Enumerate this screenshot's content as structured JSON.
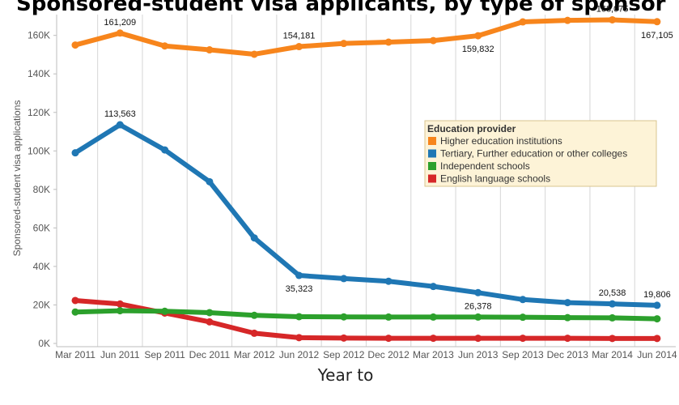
{
  "chart_data": {
    "type": "line",
    "title": "Sponsored-student visa applicants, by type of sponsor",
    "xlabel": "Year to",
    "ylabel": "Sponsored-student visa applications",
    "ylim": [
      0,
      170000
    ],
    "y_ticks": [
      0,
      20000,
      40000,
      60000,
      80000,
      100000,
      120000,
      140000,
      160000
    ],
    "y_tick_labels": [
      "0K",
      "20K",
      "40K",
      "60K",
      "80K",
      "100K",
      "120K",
      "140K",
      "160K"
    ],
    "grid": "vertical",
    "legend_position": "right",
    "legend_title": "Education provider",
    "categories": [
      "Mar 2011",
      "Jun 2011",
      "Sep 2011",
      "Dec 2011",
      "Mar 2012",
      "Jun 2012",
      "Sep 2012",
      "Dec 2012",
      "Mar 2013",
      "Jun 2013",
      "Sep 2013",
      "Dec 2013",
      "Mar 2014",
      "Jun 2014"
    ],
    "series": [
      {
        "name": "Higher education institutions",
        "color": "#f7851c",
        "values": [
          155000,
          161209,
          154500,
          152500,
          150200,
          154181,
          155800,
          156500,
          157300,
          159832,
          167000,
          167800,
          168075,
          167105
        ],
        "labels": [
          {
            "index": 1,
            "text": "161,209",
            "pos": "above"
          },
          {
            "index": 5,
            "text": "154,181",
            "pos": "above"
          },
          {
            "index": 9,
            "text": "159,832",
            "pos": "below"
          },
          {
            "index": 12,
            "text": "168,075",
            "pos": "above"
          },
          {
            "index": 13,
            "text": "167,105",
            "pos": "below"
          }
        ]
      },
      {
        "name": "Tertiary, Further education or other colleges",
        "color": "#1f77b4",
        "values": [
          99000,
          113563,
          100500,
          84000,
          54800,
          35323,
          33700,
          32300,
          29600,
          26378,
          22800,
          21200,
          20538,
          19806
        ],
        "labels": [
          {
            "index": 1,
            "text": "113,563",
            "pos": "above"
          },
          {
            "index": 5,
            "text": "35,323",
            "pos": "below"
          },
          {
            "index": 9,
            "text": "26,378",
            "pos": "below"
          },
          {
            "index": 12,
            "text": "20,538",
            "pos": "above"
          },
          {
            "index": 13,
            "text": "19,806",
            "pos": "above"
          }
        ]
      },
      {
        "name": "Independent schools",
        "color": "#2ca02c",
        "values": [
          16300,
          17000,
          16700,
          16000,
          14600,
          13900,
          13800,
          13700,
          13700,
          13700,
          13600,
          13400,
          13300,
          12800
        ],
        "labels": []
      },
      {
        "name": "English language schools",
        "color": "#d62728",
        "values": [
          22300,
          20500,
          15800,
          11200,
          5300,
          3000,
          2800,
          2700,
          2700,
          2700,
          2700,
          2700,
          2600,
          2600
        ],
        "labels": []
      }
    ]
  }
}
